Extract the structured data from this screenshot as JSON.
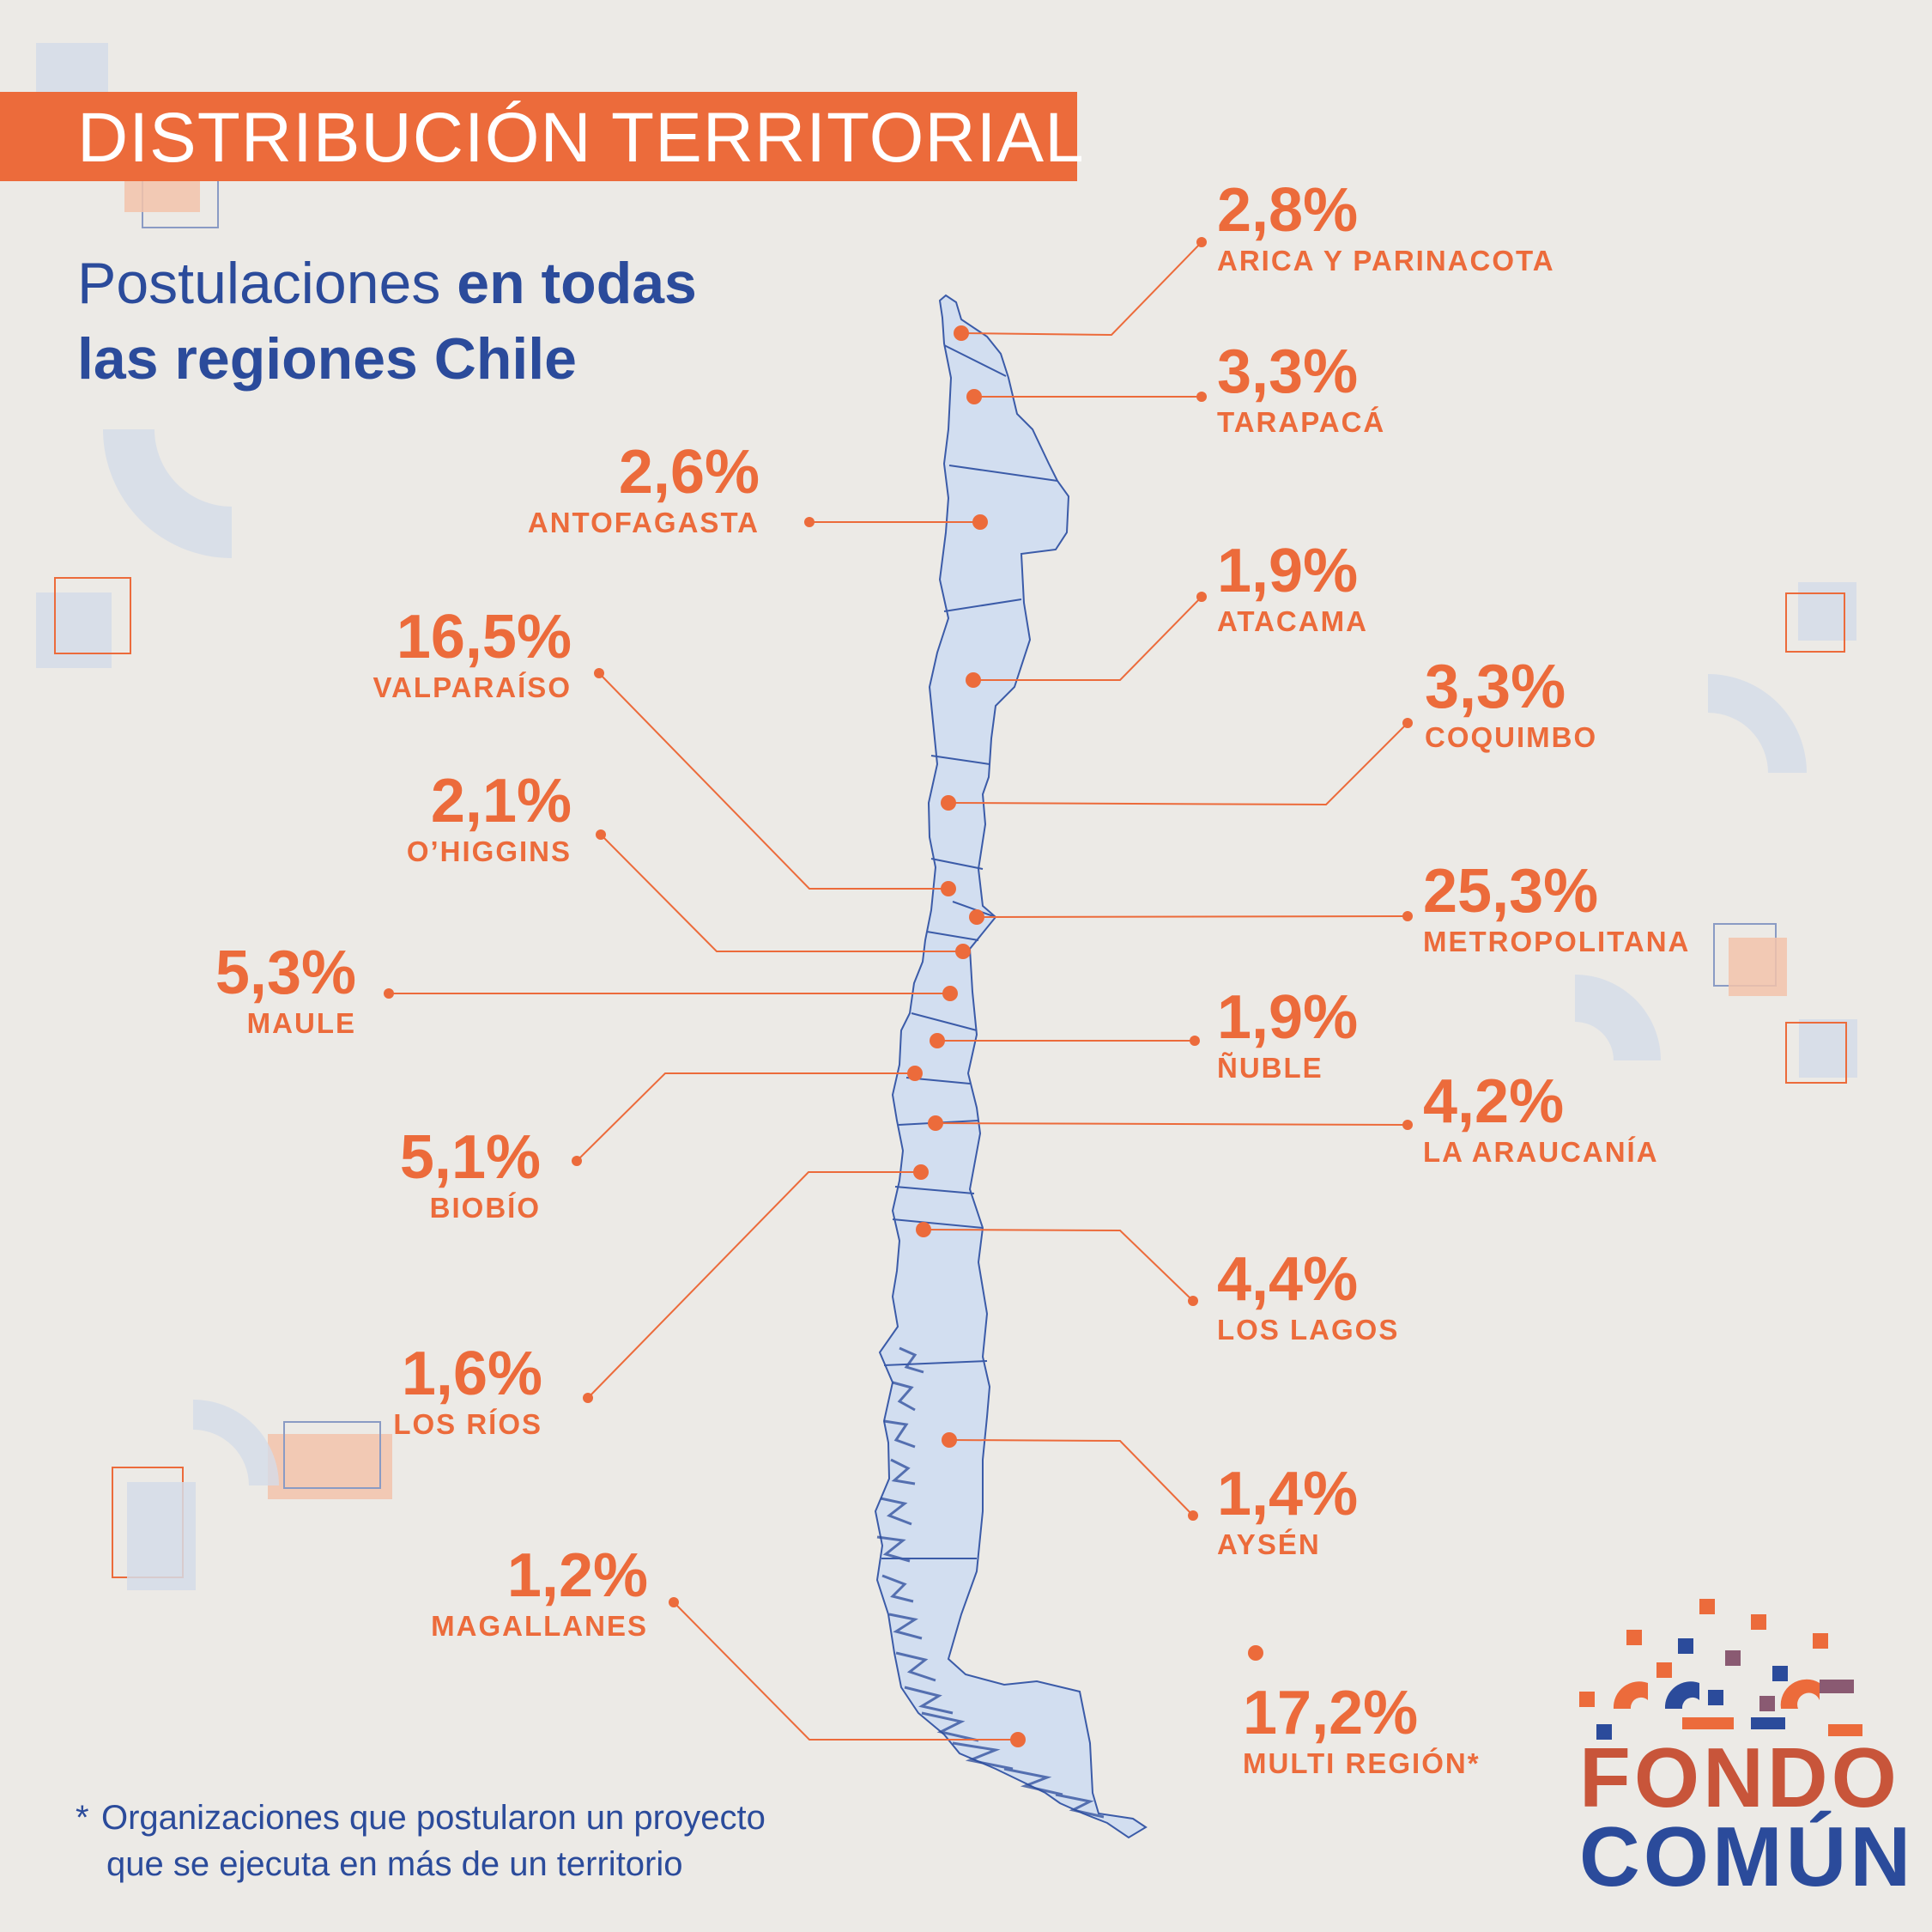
{
  "header": {
    "title": "DISTRIBUCIÓN TERRITORIAL",
    "subtitle_regular": "Postulaciones ",
    "subtitle_bold_1": "en todas",
    "subtitle_bold_2": "las regiones Chile"
  },
  "regions": [
    {
      "name": "ARICA Y PARINACOTA",
      "percent": "2,8%"
    },
    {
      "name": "TARAPACÁ",
      "percent": "3,3%"
    },
    {
      "name": "ANTOFAGASTA",
      "percent": "2,6%"
    },
    {
      "name": "ATACAMA",
      "percent": "1,9%"
    },
    {
      "name": "COQUIMBO",
      "percent": "3,3%"
    },
    {
      "name": "VALPARAÍSO",
      "percent": "16,5%"
    },
    {
      "name": "METROPOLITANA",
      "percent": "25,3%"
    },
    {
      "name": "O’HIGGINS",
      "percent": "2,1%"
    },
    {
      "name": "MAULE",
      "percent": "5,3%"
    },
    {
      "name": "ÑUBLE",
      "percent": "1,9%"
    },
    {
      "name": "BIOBÍO",
      "percent": "5,1%"
    },
    {
      "name": "LA ARAUCANÍA",
      "percent": "4,2%"
    },
    {
      "name": "LOS RÍOS",
      "percent": "1,6%"
    },
    {
      "name": "LOS LAGOS",
      "percent": "4,4%"
    },
    {
      "name": "AYSÉN",
      "percent": "1,4%"
    },
    {
      "name": "MAGALLANES",
      "percent": "1,2%"
    }
  ],
  "multi_region": {
    "name": "MULTI REGIÓN*",
    "percent": "17,2%"
  },
  "footnote": {
    "asterisk": "*",
    "line1": "Organizaciones que postularon un proyecto",
    "line2": "que se ejecuta en más de un territorio"
  },
  "logo": {
    "line1": "FONDO",
    "line2": "COMÚN"
  },
  "colors": {
    "accent": "#ec6b3b",
    "brand_blue": "#2b4b9b",
    "map_fill": "#d2def0",
    "background": "#eceae6"
  }
}
